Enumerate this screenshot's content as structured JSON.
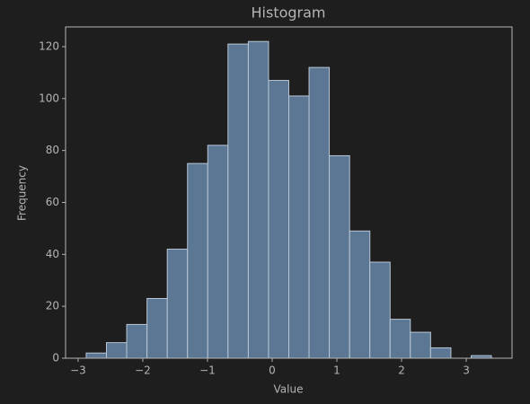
{
  "chart_data": {
    "type": "histogram",
    "title": "Histogram",
    "x_label": "Value",
    "y_label": "Frequency",
    "bins": [
      -2.875,
      -2.562,
      -2.249,
      -1.935,
      -1.622,
      -1.309,
      -0.996,
      -0.683,
      -0.369,
      -0.056,
      0.257,
      0.57,
      0.883,
      1.197,
      1.51,
      1.823,
      2.136,
      2.449,
      2.763,
      3.076,
      3.389
    ],
    "values": [
      2,
      6,
      13,
      23,
      42,
      75,
      82,
      121,
      122,
      107,
      101,
      112,
      78,
      49,
      37,
      15,
      10,
      4,
      0,
      1
    ],
    "color": "#5b7794",
    "edge_color": "#b9c6d4",
    "xlim": [
      -3.194,
      3.708
    ],
    "ylim": [
      0,
      127.6
    ],
    "xticks": [
      {
        "value": -3,
        "label": "−3"
      },
      {
        "value": -2,
        "label": "−2"
      },
      {
        "value": -1,
        "label": "−1"
      },
      0,
      1,
      2,
      3
    ],
    "yticks": [
      0,
      20,
      40,
      60,
      80,
      100,
      120
    ]
  }
}
